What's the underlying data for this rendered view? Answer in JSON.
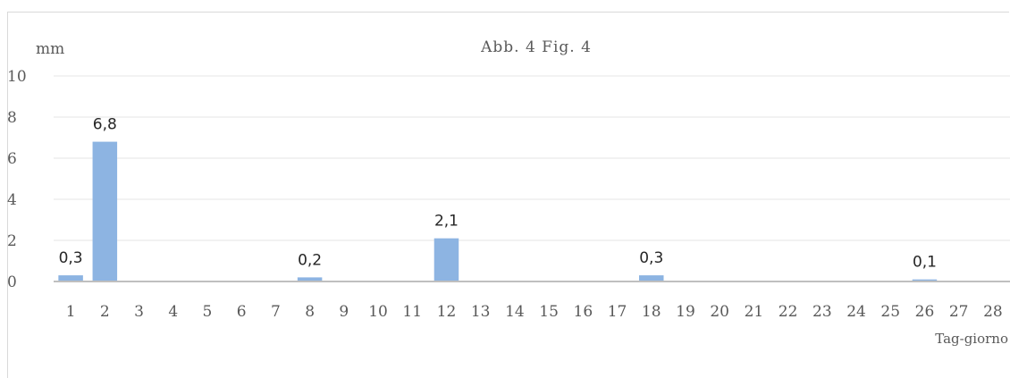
{
  "chart_data": {
    "type": "bar",
    "title": "Abb. 4   Fig. 4",
    "ylabel": "mm",
    "xlabel": "Tag-giorno",
    "ylim": [
      0,
      10
    ],
    "yticks": [
      0,
      2,
      4,
      6,
      8,
      10
    ],
    "grid": true,
    "legend": "none",
    "colors": {
      "bar": "#8db4e2",
      "grid": "#e6e6e6",
      "axis": "#bfbfbf",
      "text": "#595959"
    },
    "categories": [
      "1",
      "2",
      "3",
      "4",
      "5",
      "6",
      "7",
      "8",
      "9",
      "10",
      "11",
      "12",
      "13",
      "14",
      "15",
      "16",
      "17",
      "18",
      "19",
      "20",
      "21",
      "22",
      "23",
      "24",
      "25",
      "26",
      "27",
      "28"
    ],
    "values": [
      0.3,
      6.8,
      0,
      0,
      0,
      0,
      0,
      0.2,
      0,
      0,
      0,
      2.1,
      0,
      0,
      0,
      0,
      0,
      0.3,
      0,
      0,
      0,
      0,
      0,
      0,
      0,
      0.1,
      0,
      0
    ],
    "data_labels": [
      "0,3",
      "6,8",
      "",
      "",
      "",
      "",
      "",
      "0,2",
      "",
      "",
      "",
      "2,1",
      "",
      "",
      "",
      "",
      "",
      "0,3",
      "",
      "",
      "",
      "",
      "",
      "",
      "",
      "0,1",
      "",
      ""
    ]
  }
}
